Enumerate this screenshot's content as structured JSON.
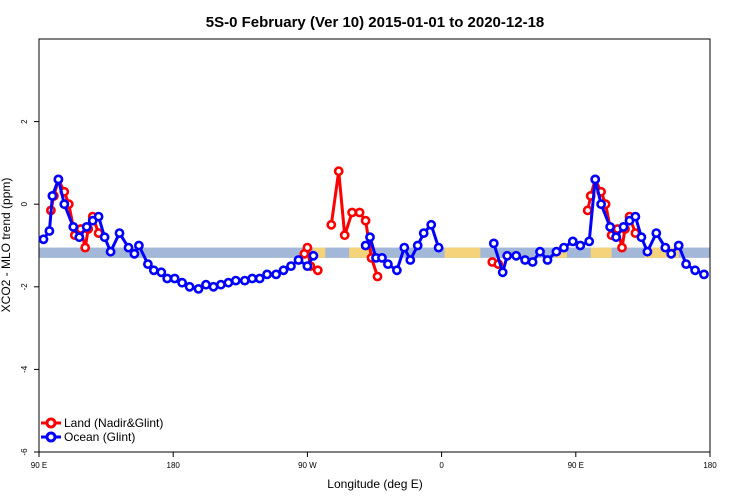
{
  "chart_data": {
    "type": "line",
    "title": "5S-0 February (Ver 10)   2015-01-01 to 2020-12-18",
    "xlabel": "Longitude (deg E)",
    "ylabel": "XCO2 - MLO trend (ppm)",
    "xlim": [
      90,
      540
    ],
    "ylim": [
      -6,
      4
    ],
    "xticks": [
      90,
      180,
      270,
      360,
      450,
      540
    ],
    "xtick_labels": [
      "90 E",
      "180",
      "90 W",
      "0",
      "90 E",
      "180"
    ],
    "yticks": [
      -6,
      -4,
      -2,
      0,
      2
    ],
    "ytick_labels": [
      "-6",
      "-4",
      "-2",
      "0",
      "2"
    ],
    "grid": false,
    "legend_position": "bottom-left",
    "colors": {
      "land": "#ff0000",
      "ocean": "#0000ff",
      "land_band": "#f5d37a",
      "ocean_band": "#a3b8d8"
    },
    "band": {
      "y_top": -1.05,
      "y_bottom": -1.3
    },
    "land_segments": [
      [
        274,
        282
      ],
      [
        298,
        312
      ],
      [
        362,
        386
      ],
      [
        436,
        444
      ],
      [
        460,
        474
      ],
      [
        496,
        519
      ]
    ],
    "series": [
      {
        "name": "Land (Nadir&Glint)",
        "color": "#ff0000",
        "segments": [
          [
            [
              98,
              -0.15
            ],
            [
              100,
              0.2
            ],
            [
              103,
              0.6
            ],
            [
              107,
              0.3
            ],
            [
              110,
              0.0
            ],
            [
              114,
              -0.75
            ],
            [
              118,
              -0.6
            ],
            [
              121,
              -1.05
            ],
            [
              123,
              -0.6
            ],
            [
              126,
              -0.3
            ],
            [
              130,
              -0.7
            ]
          ],
          [
            [
              268,
              -1.2
            ],
            [
              270,
              -1.05
            ],
            [
              272,
              -1.5
            ],
            [
              277,
              -1.6
            ]
          ],
          [
            [
              286,
              -0.5
            ],
            [
              291,
              0.8
            ],
            [
              295,
              -0.75
            ],
            [
              300,
              -0.2
            ],
            [
              305,
              -0.2
            ],
            [
              309,
              -0.4
            ],
            [
              313,
              -1.3
            ],
            [
              317,
              -1.75
            ]
          ],
          [
            [
              394,
              -1.4
            ],
            [
              398,
              -1.45
            ]
          ],
          [
            [
              458,
              -0.15
            ],
            [
              460,
              0.2
            ],
            [
              463,
              0.6
            ],
            [
              467,
              0.3
            ],
            [
              470,
              0.0
            ],
            [
              474,
              -0.75
            ],
            [
              478,
              -0.6
            ],
            [
              481,
              -1.05
            ],
            [
              483,
              -0.6
            ],
            [
              486,
              -0.3
            ],
            [
              490,
              -0.7
            ]
          ]
        ]
      },
      {
        "name": "Ocean (Glint)",
        "color": "#0000ff",
        "segments": [
          [
            [
              93,
              -0.85
            ],
            [
              97,
              -0.65
            ],
            [
              99,
              0.2
            ],
            [
              103,
              0.6
            ],
            [
              107,
              0.0
            ],
            [
              113,
              -0.55
            ],
            [
              117,
              -0.8
            ],
            [
              122,
              -0.55
            ],
            [
              126,
              -0.4
            ],
            [
              130,
              -0.3
            ],
            [
              134,
              -0.8
            ],
            [
              138,
              -1.15
            ],
            [
              144,
              -0.7
            ],
            [
              150,
              -1.05
            ],
            [
              154,
              -1.2
            ],
            [
              157,
              -1.0
            ],
            [
              163,
              -1.45
            ],
            [
              167,
              -1.6
            ],
            [
              172,
              -1.65
            ],
            [
              176,
              -1.8
            ],
            [
              181,
              -1.8
            ],
            [
              186,
              -1.9
            ],
            [
              191,
              -2.0
            ],
            [
              197,
              -2.05
            ],
            [
              202,
              -1.95
            ],
            [
              207,
              -2.0
            ],
            [
              212,
              -1.95
            ],
            [
              217,
              -1.9
            ],
            [
              222,
              -1.85
            ],
            [
              228,
              -1.85
            ],
            [
              233,
              -1.8
            ],
            [
              238,
              -1.8
            ],
            [
              243,
              -1.7
            ],
            [
              249,
              -1.7
            ],
            [
              254,
              -1.6
            ],
            [
              259,
              -1.5
            ],
            [
              264,
              -1.35
            ],
            [
              270,
              -1.5
            ],
            [
              274,
              -1.25
            ]
          ],
          [
            [
              309,
              -1.0
            ],
            [
              312,
              -0.8
            ],
            [
              316,
              -1.3
            ],
            [
              320,
              -1.3
            ],
            [
              324,
              -1.45
            ],
            [
              330,
              -1.6
            ],
            [
              335,
              -1.05
            ],
            [
              339,
              -1.35
            ],
            [
              344,
              -1.0
            ],
            [
              348,
              -0.7
            ],
            [
              353,
              -0.5
            ],
            [
              358,
              -1.05
            ]
          ],
          [
            [
              395,
              -0.95
            ],
            [
              401,
              -1.65
            ],
            [
              404,
              -1.25
            ],
            [
              410,
              -1.25
            ],
            [
              416,
              -1.35
            ],
            [
              421,
              -1.4
            ],
            [
              426,
              -1.15
            ],
            [
              431,
              -1.35
            ],
            [
              437,
              -1.15
            ],
            [
              442,
              -1.05
            ],
            [
              448,
              -0.9
            ],
            [
              453,
              -1.0
            ],
            [
              459,
              -0.9
            ],
            [
              463,
              0.6
            ],
            [
              467,
              0.0
            ],
            [
              473,
              -0.55
            ],
            [
              477,
              -0.8
            ],
            [
              482,
              -0.55
            ],
            [
              486,
              -0.4
            ],
            [
              490,
              -0.3
            ],
            [
              494,
              -0.8
            ],
            [
              498,
              -1.15
            ],
            [
              504,
              -0.7
            ],
            [
              510,
              -1.05
            ],
            [
              514,
              -1.2
            ],
            [
              519,
              -1.0
            ],
            [
              524,
              -1.45
            ],
            [
              530,
              -1.6
            ],
            [
              536,
              -1.7
            ]
          ]
        ]
      }
    ]
  }
}
